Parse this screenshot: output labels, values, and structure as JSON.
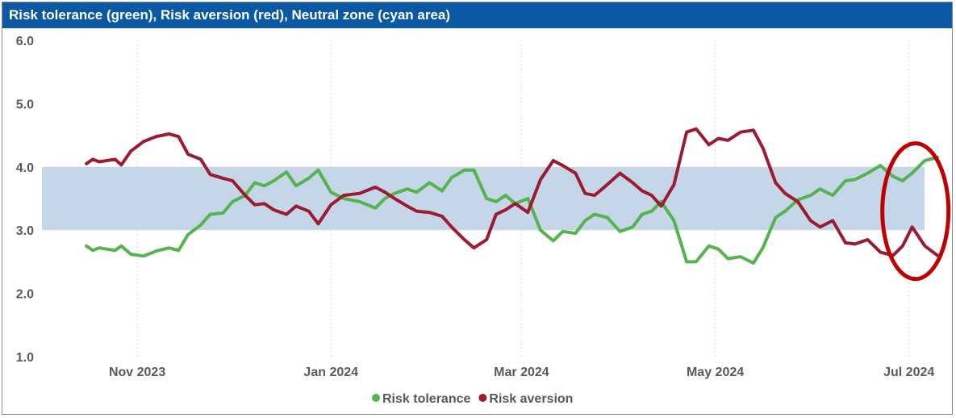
{
  "title": "Risk tolerance (green), Risk aversion (red), Neutral zone (cyan area)",
  "colors": {
    "title_bg": "#0b58a4",
    "tolerance": "#55b44f",
    "aversion": "#9b1b30",
    "neutral_zone": "#c4d6e7",
    "highlight": "#c00000"
  },
  "chart_data": {
    "type": "line",
    "title": "Risk tolerance (green), Risk aversion (red), Neutral zone (cyan area)",
    "xlabel": "",
    "ylabel": "",
    "ylim": [
      1.0,
      6.0
    ],
    "yticks": [
      "1.0",
      "2.0",
      "3.0",
      "4.0",
      "5.0",
      "6.0"
    ],
    "xlim": [
      "2023-10-02",
      "2024-07-12"
    ],
    "xticks": [
      {
        "date": "2023-11-01",
        "label": "Nov 2023"
      },
      {
        "date": "2024-01-01",
        "label": "Jan 2024"
      },
      {
        "date": "2024-03-01",
        "label": "Mar 2024"
      },
      {
        "date": "2024-05-01",
        "label": "May 2024"
      },
      {
        "date": "2024-07-01",
        "label": "Jul 2024"
      }
    ],
    "grid": "vertical dotted",
    "legend_position": "bottom",
    "neutral_zone": {
      "y0": 3.0,
      "y1": 4.0
    },
    "highlight": {
      "type": "ellipse",
      "x": "2024-07-01",
      "y": 3.3
    },
    "series": [
      {
        "name": "Risk tolerance",
        "color": "#55b44f",
        "points": [
          [
            "2023-10-16",
            2.75
          ],
          [
            "2023-10-18",
            2.68
          ],
          [
            "2023-10-20",
            2.72
          ],
          [
            "2023-10-25",
            2.68
          ],
          [
            "2023-10-27",
            2.75
          ],
          [
            "2023-10-30",
            2.62
          ],
          [
            "2023-11-03",
            2.59
          ],
          [
            "2023-11-07",
            2.67
          ],
          [
            "2023-11-11",
            2.72
          ],
          [
            "2023-11-14",
            2.68
          ],
          [
            "2023-11-17",
            2.93
          ],
          [
            "2023-11-21",
            3.08
          ],
          [
            "2023-11-24",
            3.25
          ],
          [
            "2023-11-28",
            3.27
          ],
          [
            "2023-12-01",
            3.45
          ],
          [
            "2023-12-05",
            3.55
          ],
          [
            "2023-12-08",
            3.75
          ],
          [
            "2023-12-11",
            3.7
          ],
          [
            "2023-12-14",
            3.78
          ],
          [
            "2023-12-18",
            3.92
          ],
          [
            "2023-12-21",
            3.7
          ],
          [
            "2023-12-25",
            3.82
          ],
          [
            "2023-12-28",
            3.95
          ],
          [
            "2024-01-01",
            3.6
          ],
          [
            "2024-01-05",
            3.5
          ],
          [
            "2024-01-10",
            3.45
          ],
          [
            "2024-01-15",
            3.35
          ],
          [
            "2024-01-18",
            3.5
          ],
          [
            "2024-01-21",
            3.58
          ],
          [
            "2024-01-25",
            3.65
          ],
          [
            "2024-01-28",
            3.6
          ],
          [
            "2024-02-01",
            3.75
          ],
          [
            "2024-02-05",
            3.62
          ],
          [
            "2024-02-08",
            3.83
          ],
          [
            "2024-02-12",
            3.95
          ],
          [
            "2024-02-15",
            3.95
          ],
          [
            "2024-02-19",
            3.5
          ],
          [
            "2024-02-22",
            3.45
          ],
          [
            "2024-02-25",
            3.55
          ],
          [
            "2024-02-28",
            3.42
          ],
          [
            "2024-03-03",
            3.5
          ],
          [
            "2024-03-07",
            3.0
          ],
          [
            "2024-03-11",
            2.83
          ],
          [
            "2024-03-14",
            2.98
          ],
          [
            "2024-03-18",
            2.95
          ],
          [
            "2024-03-21",
            3.15
          ],
          [
            "2024-03-24",
            3.25
          ],
          [
            "2024-03-28",
            3.2
          ],
          [
            "2024-04-01",
            2.98
          ],
          [
            "2024-04-05",
            3.05
          ],
          [
            "2024-04-08",
            3.25
          ],
          [
            "2024-04-11",
            3.3
          ],
          [
            "2024-04-14",
            3.45
          ],
          [
            "2024-04-18",
            3.15
          ],
          [
            "2024-04-22",
            2.5
          ],
          [
            "2024-04-25",
            2.5
          ],
          [
            "2024-04-29",
            2.75
          ],
          [
            "2024-05-02",
            2.7
          ],
          [
            "2024-05-05",
            2.55
          ],
          [
            "2024-05-09",
            2.58
          ],
          [
            "2024-05-13",
            2.48
          ],
          [
            "2024-05-16",
            2.72
          ],
          [
            "2024-05-20",
            3.2
          ],
          [
            "2024-05-23",
            3.3
          ],
          [
            "2024-05-27",
            3.48
          ],
          [
            "2024-05-31",
            3.55
          ],
          [
            "2024-06-03",
            3.65
          ],
          [
            "2024-06-07",
            3.55
          ],
          [
            "2024-06-11",
            3.78
          ],
          [
            "2024-06-14",
            3.8
          ],
          [
            "2024-06-18",
            3.9
          ],
          [
            "2024-06-22",
            4.02
          ],
          [
            "2024-06-26",
            3.85
          ],
          [
            "2024-06-29",
            3.78
          ],
          [
            "2024-07-02",
            3.9
          ],
          [
            "2024-07-06",
            4.1
          ],
          [
            "2024-07-10",
            4.15
          ]
        ]
      },
      {
        "name": "Risk aversion",
        "color": "#9b1b30",
        "points": [
          [
            "2023-10-16",
            4.05
          ],
          [
            "2023-10-18",
            4.12
          ],
          [
            "2023-10-20",
            4.08
          ],
          [
            "2023-10-25",
            4.12
          ],
          [
            "2023-10-27",
            4.03
          ],
          [
            "2023-10-30",
            4.25
          ],
          [
            "2023-11-03",
            4.4
          ],
          [
            "2023-11-07",
            4.48
          ],
          [
            "2023-11-11",
            4.52
          ],
          [
            "2023-11-14",
            4.48
          ],
          [
            "2023-11-17",
            4.2
          ],
          [
            "2023-11-21",
            4.12
          ],
          [
            "2023-11-24",
            3.88
          ],
          [
            "2023-11-28",
            3.82
          ],
          [
            "2023-12-01",
            3.78
          ],
          [
            "2023-12-05",
            3.55
          ],
          [
            "2023-12-08",
            3.4
          ],
          [
            "2023-12-11",
            3.42
          ],
          [
            "2023-12-14",
            3.32
          ],
          [
            "2023-12-18",
            3.25
          ],
          [
            "2023-12-21",
            3.38
          ],
          [
            "2023-12-25",
            3.3
          ],
          [
            "2023-12-28",
            3.1
          ],
          [
            "2024-01-01",
            3.4
          ],
          [
            "2024-01-05",
            3.55
          ],
          [
            "2024-01-10",
            3.58
          ],
          [
            "2024-01-15",
            3.68
          ],
          [
            "2024-01-18",
            3.6
          ],
          [
            "2024-01-21",
            3.5
          ],
          [
            "2024-01-25",
            3.38
          ],
          [
            "2024-01-28",
            3.3
          ],
          [
            "2024-02-01",
            3.28
          ],
          [
            "2024-02-05",
            3.22
          ],
          [
            "2024-02-08",
            3.05
          ],
          [
            "2024-02-12",
            2.85
          ],
          [
            "2024-02-15",
            2.72
          ],
          [
            "2024-02-19",
            2.85
          ],
          [
            "2024-02-22",
            3.25
          ],
          [
            "2024-02-25",
            3.32
          ],
          [
            "2024-02-28",
            3.42
          ],
          [
            "2024-03-03",
            3.28
          ],
          [
            "2024-03-07",
            3.8
          ],
          [
            "2024-03-11",
            4.1
          ],
          [
            "2024-03-14",
            4.02
          ],
          [
            "2024-03-18",
            3.9
          ],
          [
            "2024-03-21",
            3.58
          ],
          [
            "2024-03-24",
            3.55
          ],
          [
            "2024-03-28",
            3.72
          ],
          [
            "2024-04-01",
            3.9
          ],
          [
            "2024-04-05",
            3.75
          ],
          [
            "2024-04-08",
            3.62
          ],
          [
            "2024-04-11",
            3.55
          ],
          [
            "2024-04-14",
            3.38
          ],
          [
            "2024-04-18",
            3.72
          ],
          [
            "2024-04-22",
            4.55
          ],
          [
            "2024-04-25",
            4.6
          ],
          [
            "2024-04-29",
            4.35
          ],
          [
            "2024-05-02",
            4.45
          ],
          [
            "2024-05-05",
            4.42
          ],
          [
            "2024-05-09",
            4.55
          ],
          [
            "2024-05-13",
            4.58
          ],
          [
            "2024-05-16",
            4.3
          ],
          [
            "2024-05-20",
            3.75
          ],
          [
            "2024-05-23",
            3.58
          ],
          [
            "2024-05-27",
            3.45
          ],
          [
            "2024-05-31",
            3.15
          ],
          [
            "2024-06-03",
            3.05
          ],
          [
            "2024-06-07",
            3.15
          ],
          [
            "2024-06-11",
            2.8
          ],
          [
            "2024-06-14",
            2.78
          ],
          [
            "2024-06-18",
            2.85
          ],
          [
            "2024-06-22",
            2.65
          ],
          [
            "2024-06-26",
            2.6
          ],
          [
            "2024-06-29",
            2.75
          ],
          [
            "2024-07-02",
            3.05
          ],
          [
            "2024-07-06",
            2.75
          ],
          [
            "2024-07-10",
            2.6
          ]
        ]
      }
    ]
  }
}
